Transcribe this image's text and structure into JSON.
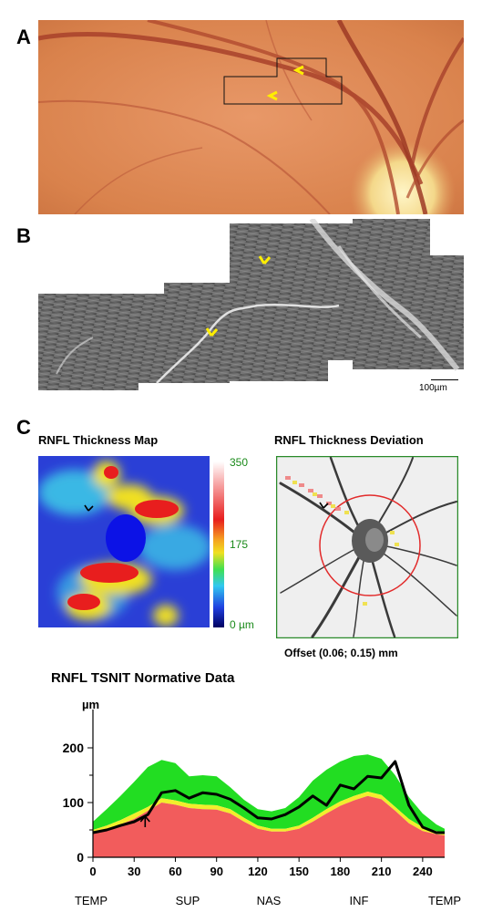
{
  "panels": {
    "a": {
      "letter": "A"
    },
    "b": {
      "letter": "B",
      "scale_bar": "100µm"
    },
    "c": {
      "letter": "C"
    }
  },
  "thickness_map": {
    "title": "RNFL Thickness Map",
    "colorbar_ticks": [
      "350",
      "175",
      "0 µm"
    ]
  },
  "deviation": {
    "title": "RNFL Thickness Deviation",
    "offset": "Offset (0.06; 0.15) mm"
  },
  "colors": {
    "normal_band": "#22dd22",
    "borderline_band": "#f2ee2c",
    "abnormal_band": "#f25c5c",
    "patient_line": "#000000",
    "tick_green": "#1a8a1a"
  },
  "chart_data": {
    "type": "area",
    "title": "RNFL TSNIT Normative Data",
    "ylabel": "µm",
    "xlabel": "",
    "xlim": [
      0,
      256
    ],
    "ylim": [
      0,
      250
    ],
    "x_ticks": [
      0,
      30,
      60,
      90,
      120,
      150,
      180,
      210,
      240
    ],
    "y_ticks": [
      0,
      100,
      200
    ],
    "region_labels": [
      "TEMP",
      "SUP",
      "NAS",
      "INF",
      "TEMP"
    ],
    "x": [
      0,
      10,
      20,
      30,
      40,
      50,
      60,
      70,
      80,
      90,
      100,
      110,
      120,
      130,
      140,
      150,
      160,
      170,
      180,
      190,
      200,
      210,
      220,
      230,
      240,
      250,
      256
    ],
    "series": [
      {
        "values": [
          50,
          58,
          68,
          80,
          92,
          108,
          104,
          98,
          96,
          95,
          88,
          72,
          58,
          52,
          52,
          58,
          72,
          88,
          102,
          112,
          120,
          114,
          92,
          70,
          55,
          48,
          45
        ]
      },
      {
        "values": [
          45,
          52,
          60,
          70,
          85,
          100,
          96,
          90,
          88,
          87,
          80,
          65,
          52,
          47,
          47,
          52,
          65,
          80,
          94,
          104,
          112,
          106,
          85,
          62,
          48,
          42,
          40
        ]
      },
      {
        "values": [
          65,
          88,
          112,
          138,
          165,
          178,
          172,
          148,
          150,
          148,
          128,
          105,
          88,
          84,
          90,
          110,
          140,
          160,
          175,
          185,
          188,
          180,
          150,
          110,
          80,
          60,
          52
        ]
      },
      {
        "values": [
          45,
          50,
          58,
          65,
          78,
          118,
          122,
          108,
          118,
          115,
          106,
          90,
          72,
          70,
          78,
          92,
          112,
          95,
          132,
          125,
          148,
          145,
          175,
          95,
          55,
          45,
          45
        ]
      }
    ]
  }
}
